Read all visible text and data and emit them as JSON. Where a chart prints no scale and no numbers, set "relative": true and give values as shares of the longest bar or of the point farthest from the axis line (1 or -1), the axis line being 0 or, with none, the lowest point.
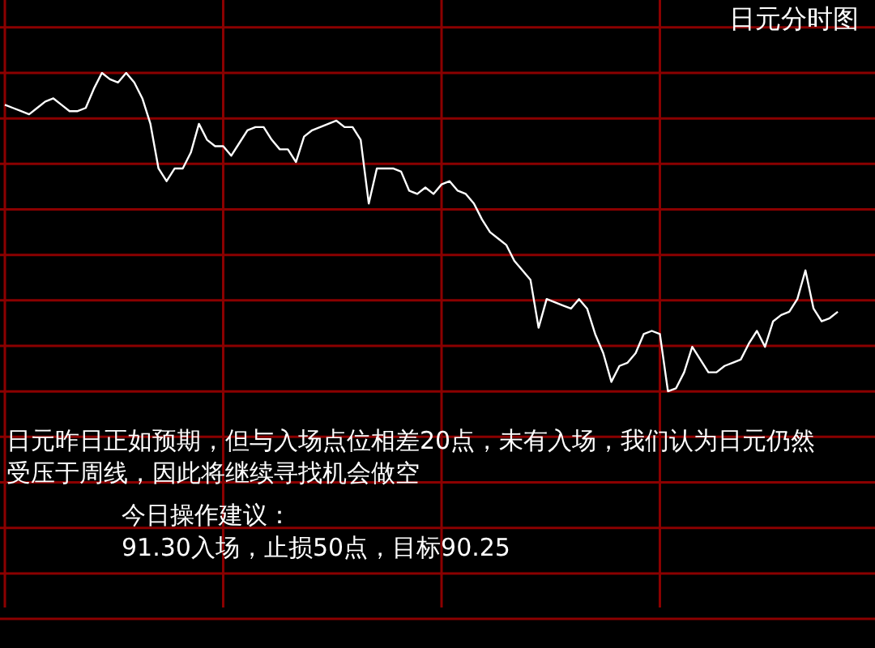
{
  "chart_data": {
    "type": "line",
    "title": "日元分时图",
    "relative": true,
    "grid": true,
    "marker": "none",
    "annotations": [
      "日元昨日正如预期，但与入场点位相差20点，未有入场，我们认为日元仍然受压于周线，因此将继续寻找机会做空",
      "今日操作建议：",
      "91.30入场，止损50点，目标90.25"
    ],
    "categories": [
      null,
      null,
      null,
      null,
      null,
      null,
      null,
      null,
      null,
      null,
      null,
      null,
      null,
      null,
      null,
      null,
      null,
      null,
      null,
      null,
      null,
      null,
      null,
      null,
      null,
      null,
      null,
      null,
      null,
      null,
      null,
      null,
      null,
      null,
      null,
      null,
      null,
      null,
      null,
      null,
      null,
      null,
      null,
      null,
      null,
      null,
      null,
      null,
      null,
      null,
      null,
      null,
      null,
      null,
      null,
      null,
      null,
      null,
      null,
      null,
      null,
      null,
      null,
      null,
      null,
      null,
      null,
      null,
      null,
      null,
      null,
      null,
      null,
      null,
      null,
      null,
      null,
      null,
      null,
      null,
      null,
      null,
      null,
      null,
      null,
      null,
      null,
      null,
      null,
      null,
      null,
      null,
      null,
      null,
      null,
      null,
      null,
      null,
      null,
      null,
      null,
      null,
      null,
      null,
      null,
      null,
      null,
      null
    ],
    "series": [
      {
        "color": "#ffffff",
        "values": [
          0.9,
          0.89,
          0.88,
          0.87,
          0.89,
          0.91,
          0.92,
          0.9,
          0.88,
          0.88,
          0.89,
          0.95,
          1,
          0.98,
          0.97,
          1,
          0.97,
          0.92,
          0.84,
          0.7,
          0.66,
          0.7,
          0.7,
          0.75,
          0.84,
          0.79,
          0.77,
          0.77,
          0.74,
          0.78,
          0.82,
          0.83,
          0.83,
          0.79,
          0.76,
          0.76,
          0.72,
          0.8,
          0.82,
          0.83,
          0.84,
          0.85,
          0.83,
          0.83,
          0.79,
          0.59,
          0.7,
          0.7,
          0.7,
          0.69,
          0.63,
          0.62,
          0.64,
          0.62,
          0.65,
          0.66,
          0.63,
          0.62,
          0.59,
          0.54,
          0.5,
          0.48,
          0.46,
          0.41,
          0.38,
          0.35,
          0.2,
          0.29,
          0.28,
          0.27,
          0.26,
          0.29,
          0.26,
          0.18,
          0.12,
          0.03,
          0.08,
          0.09,
          0.12,
          0.18,
          0.19,
          0.18,
          0,
          0.01,
          0.06,
          0.14,
          0.1,
          0.06,
          0.06,
          0.08,
          0.09,
          0.1,
          0.15,
          0.19,
          0.14,
          0.22,
          0.24,
          0.25,
          0.29,
          0.38,
          0.26,
          0.22,
          0.23,
          0.25,
          null,
          null,
          null,
          null
        ]
      }
    ]
  }
}
